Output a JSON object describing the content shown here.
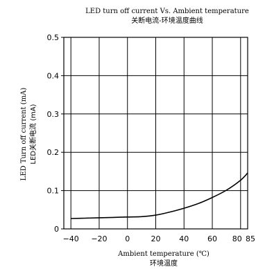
{
  "chart_data": {
    "type": "line",
    "title": "LED turn off current Vs. Ambient temperature",
    "subtitle": "关断电流-环境温度曲线",
    "xlabel": "Ambient temperature (℃)",
    "xlabel_cn": "环境温度",
    "ylabel": "LED Turn off current (mA)",
    "ylabel_cn": "LED关断电流 (mA)",
    "xlim": [
      -45,
      85
    ],
    "ylim": [
      0,
      0.5
    ],
    "x_ticks": [
      -40,
      -20,
      0,
      20,
      40,
      60,
      80,
      85
    ],
    "x_tick_labels": [
      "−40",
      "−20",
      "0",
      "20",
      "40",
      "60",
      "80",
      "85"
    ],
    "y_ticks": [
      0,
      0.1,
      0.2,
      0.3,
      0.4,
      0.5
    ],
    "y_tick_labels": [
      "0",
      "0.1",
      "0.2",
      "0.3",
      "0.4",
      "0.5"
    ],
    "grid": true,
    "series": [
      {
        "x": [
          -40,
          -30,
          -20,
          -10,
          0,
          10,
          20,
          30,
          40,
          50,
          60,
          70,
          80,
          85
        ],
        "y": [
          0.027,
          0.028,
          0.029,
          0.03,
          0.031,
          0.032,
          0.036,
          0.044,
          0.054,
          0.066,
          0.082,
          0.101,
          0.127,
          0.146
        ],
        "color": "#000000"
      }
    ]
  }
}
